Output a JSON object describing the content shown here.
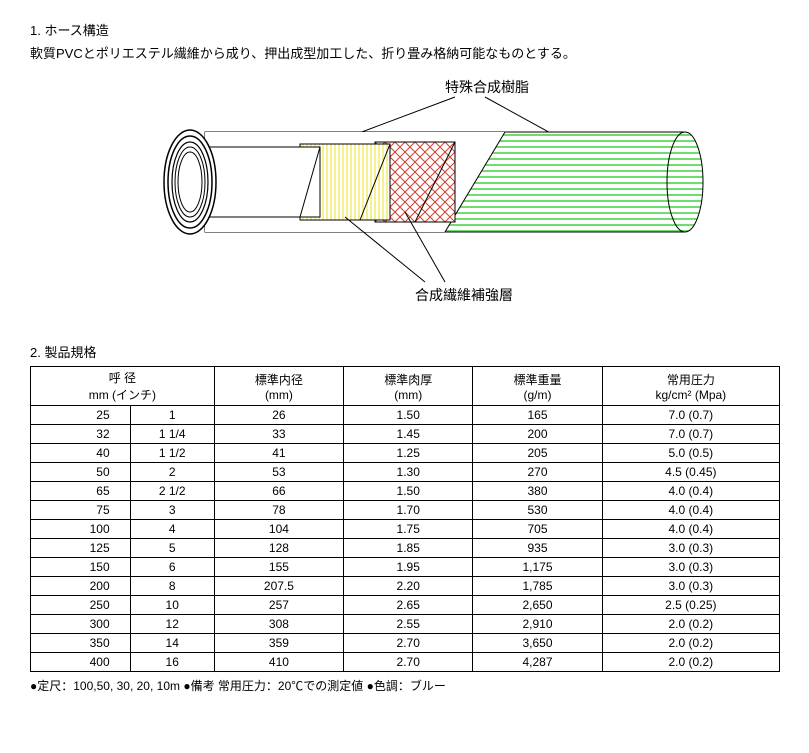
{
  "section1": {
    "title": "1.  ホース構造",
    "desc": "軟質PVCとポリエステル繊維から成り、押出成型加工した、折り畳み格納可能なものとする。"
  },
  "diagram": {
    "label_top": "特殊合成樹脂",
    "label_bottom": "合成繊維補強層",
    "colors": {
      "outer_rect_fill": "#ffffff",
      "outer_stroke": "#000000",
      "green_stripe": "#6fdc6f",
      "green_stripe_light": "#ffffff",
      "yellow_stripe": "#f5f090",
      "red_mesh": "#d04030",
      "inner_white": "#ffffff",
      "line": "#000000"
    }
  },
  "section2": {
    "title": "2.  製品規格"
  },
  "table": {
    "headers": {
      "col1_line1": "呼 径",
      "col1_line2": "mm (インチ)",
      "col2_line1": "標準内径",
      "col2_line2": "(mm)",
      "col3_line1": "標準肉厚",
      "col3_line2": "(mm)",
      "col4_line1": "標準重量",
      "col4_line2": "(g/m)",
      "col5_line1": "常用圧力",
      "col5_line2": "kg/cm² (Mpa)"
    },
    "rows": [
      {
        "mm": "25",
        "inch": "1",
        "id": "26",
        "thick": "1.50",
        "weight": "165",
        "press": "7.0 (0.7)"
      },
      {
        "mm": "32",
        "inch": "1 1/4",
        "id": "33",
        "thick": "1.45",
        "weight": "200",
        "press": "7.0 (0.7)"
      },
      {
        "mm": "40",
        "inch": "1 1/2",
        "id": "41",
        "thick": "1.25",
        "weight": "205",
        "press": "5.0 (0.5)"
      },
      {
        "mm": "50",
        "inch": "2",
        "id": "53",
        "thick": "1.30",
        "weight": "270",
        "press": "4.5 (0.45)"
      },
      {
        "mm": "65",
        "inch": "2 1/2",
        "id": "66",
        "thick": "1.50",
        "weight": "380",
        "press": "4.0 (0.4)"
      },
      {
        "mm": "75",
        "inch": "3",
        "id": "78",
        "thick": "1.70",
        "weight": "530",
        "press": "4.0 (0.4)"
      },
      {
        "mm": "100",
        "inch": "4",
        "id": "104",
        "thick": "1.75",
        "weight": "705",
        "press": "4.0 (0.4)"
      },
      {
        "mm": "125",
        "inch": "5",
        "id": "128",
        "thick": "1.85",
        "weight": "935",
        "press": "3.0 (0.3)"
      },
      {
        "mm": "150",
        "inch": "6",
        "id": "155",
        "thick": "1.95",
        "weight": "1,175",
        "press": "3.0 (0.3)"
      },
      {
        "mm": "200",
        "inch": "8",
        "id": "207.5",
        "thick": "2.20",
        "weight": "1,785",
        "press": "3.0 (0.3)"
      },
      {
        "mm": "250",
        "inch": "10",
        "id": "257",
        "thick": "2.65",
        "weight": "2,650",
        "press": "2.5 (0.25)"
      },
      {
        "mm": "300",
        "inch": "12",
        "id": "308",
        "thick": "2.55",
        "weight": "2,910",
        "press": "2.0 (0.2)"
      },
      {
        "mm": "350",
        "inch": "14",
        "id": "359",
        "thick": "2.70",
        "weight": "3,650",
        "press": "2.0 (0.2)"
      },
      {
        "mm": "400",
        "inch": "16",
        "id": "410",
        "thick": "2.70",
        "weight": "4,287",
        "press": "2.0 (0.2)"
      }
    ]
  },
  "footnote": "●定尺：100,50, 30, 20, 10m  ●備考  常用圧力：20℃での測定値  ●色調：ブルー"
}
